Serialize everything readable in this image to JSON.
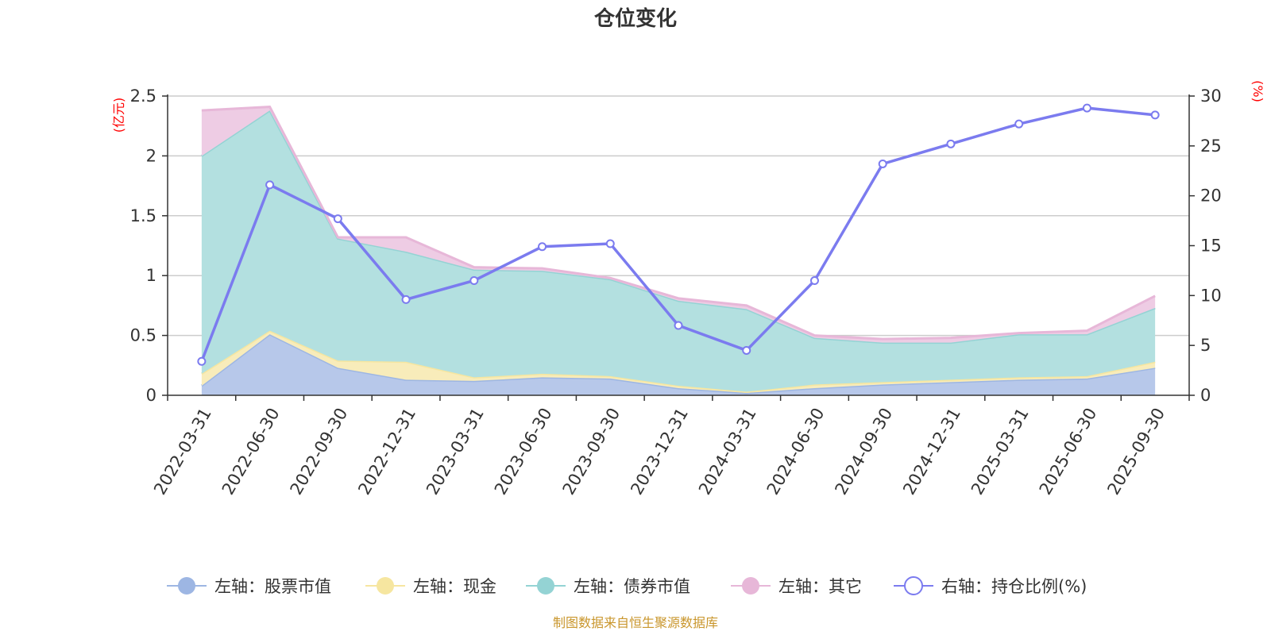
{
  "chart_data": {
    "type": "area",
    "title": "仓位变化",
    "left_unit": "(亿元)",
    "right_unit": "(%)",
    "categories": [
      "2022-03-31",
      "2022-06-30",
      "2022-09-30",
      "2022-12-31",
      "2023-03-31",
      "2023-06-30",
      "2023-09-30",
      "2023-12-31",
      "2024-03-31",
      "2024-06-30",
      "2024-09-30",
      "2024-12-31",
      "2025-03-31",
      "2025-06-30",
      "2025-09-30"
    ],
    "left_axis": {
      "min": 0,
      "max": 2.5,
      "ticks": [
        "0",
        "0.5",
        "1",
        "1.5",
        "2",
        "2.5"
      ]
    },
    "right_axis": {
      "min": 0,
      "max": 30,
      "ticks": [
        "0",
        "5",
        "10",
        "15",
        "20",
        "25",
        "30"
      ]
    },
    "stacked": true,
    "series": [
      {
        "name": "左轴：股票市值",
        "axis": "left",
        "kind": "area",
        "color": "#9db6e3",
        "fill": "#b7c8ea",
        "values": [
          0.08,
          0.51,
          0.23,
          0.13,
          0.12,
          0.15,
          0.14,
          0.06,
          0.02,
          0.06,
          0.09,
          0.11,
          0.13,
          0.14,
          0.23
        ]
      },
      {
        "name": "左轴：现金",
        "axis": "left",
        "kind": "area",
        "color": "#f6e6a0",
        "fill": "#f8ecba",
        "values": [
          0.1,
          0.03,
          0.06,
          0.15,
          0.03,
          0.03,
          0.02,
          0.02,
          0.01,
          0.03,
          0.02,
          0.02,
          0.02,
          0.02,
          0.05
        ]
      },
      {
        "name": "左轴：债券市值",
        "axis": "left",
        "kind": "area",
        "color": "#94d3d4",
        "fill": "#b3e0e0",
        "values": [
          1.82,
          1.84,
          1.02,
          0.92,
          0.9,
          0.86,
          0.81,
          0.71,
          0.69,
          0.39,
          0.33,
          0.31,
          0.36,
          0.35,
          0.45
        ]
      },
      {
        "name": "左轴：其它",
        "axis": "left",
        "kind": "area",
        "color": "#e7b7d8",
        "fill": "#eecce4",
        "values": [
          0.38,
          0.03,
          0.01,
          0.12,
          0.02,
          0.02,
          0.01,
          0.02,
          0.03,
          0.02,
          0.03,
          0.04,
          0.01,
          0.03,
          0.1
        ]
      },
      {
        "name": "右轴：持仓比例(%)",
        "axis": "right",
        "kind": "line",
        "color": "#7b7bef",
        "values": [
          3.4,
          21.1,
          17.7,
          9.6,
          11.5,
          14.9,
          15.2,
          7.0,
          4.5,
          11.5,
          23.2,
          25.2,
          27.2,
          28.8,
          28.1
        ]
      }
    ],
    "legend_position": "bottom",
    "grid": true,
    "source_note": "制图数据来自恒生聚源数据库"
  }
}
